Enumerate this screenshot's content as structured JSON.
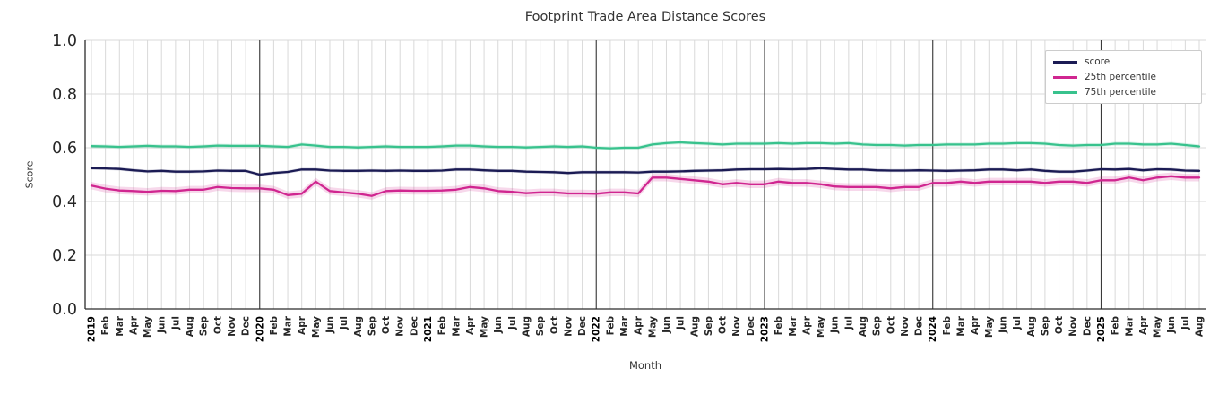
{
  "chart_data": {
    "type": "line",
    "title": "Footprint Trade Area Distance Scores",
    "xlabel": "Month",
    "ylabel": "Score",
    "ylim": [
      0.0,
      1.0
    ],
    "yticks": [
      0.0,
      0.2,
      0.4,
      0.6,
      0.8,
      1.0
    ],
    "grid": true,
    "legend_position": "upper right",
    "colors": {
      "grid": "#d9d9d9",
      "year_line": "#3a3a3a",
      "spine": "#2b2b2b",
      "tick": "#262626",
      "year_tick": "#000000"
    },
    "x_labels": [
      "2019",
      "Feb",
      "Mar",
      "Apr",
      "May",
      "Jun",
      "Jul",
      "Aug",
      "Sep",
      "Oct",
      "Nov",
      "Dec",
      "2020",
      "Feb",
      "Mar",
      "Apr",
      "May",
      "Jun",
      "Jul",
      "Aug",
      "Sep",
      "Oct",
      "Nov",
      "Dec",
      "2021",
      "Feb",
      "Mar",
      "Apr",
      "May",
      "Jun",
      "Jul",
      "Aug",
      "Sep",
      "Oct",
      "Nov",
      "Dec",
      "2022",
      "Feb",
      "Mar",
      "Apr",
      "May",
      "Jun",
      "Jul",
      "Aug",
      "Sep",
      "Oct",
      "Nov",
      "Dec",
      "2023",
      "Feb",
      "Mar",
      "Apr",
      "May",
      "Jun",
      "Jul",
      "Aug",
      "Sep",
      "Oct",
      "Nov",
      "Dec",
      "2024",
      "Feb",
      "Mar",
      "Apr",
      "May",
      "Jun",
      "Jul",
      "Aug",
      "Sep",
      "Oct",
      "Nov",
      "Dec",
      "2025",
      "Feb",
      "Mar",
      "Apr",
      "May",
      "Jun",
      "Jul",
      "Aug"
    ],
    "year_tick_indices": [
      0,
      12,
      24,
      36,
      48,
      60,
      72
    ],
    "series": [
      {
        "name": "score",
        "color": "#1b1b54",
        "band": 0.006,
        "values": [
          0.524,
          0.523,
          0.521,
          0.516,
          0.512,
          0.514,
          0.511,
          0.511,
          0.512,
          0.515,
          0.514,
          0.514,
          0.5,
          0.506,
          0.51,
          0.519,
          0.519,
          0.515,
          0.514,
          0.514,
          0.515,
          0.514,
          0.515,
          0.514,
          0.514,
          0.515,
          0.519,
          0.519,
          0.516,
          0.514,
          0.514,
          0.511,
          0.51,
          0.509,
          0.506,
          0.509,
          0.509,
          0.509,
          0.509,
          0.508,
          0.511,
          0.511,
          0.512,
          0.514,
          0.515,
          0.516,
          0.519,
          0.52,
          0.52,
          0.521,
          0.52,
          0.521,
          0.524,
          0.521,
          0.519,
          0.519,
          0.516,
          0.515,
          0.515,
          0.516,
          0.515,
          0.514,
          0.515,
          0.516,
          0.519,
          0.519,
          0.516,
          0.519,
          0.514,
          0.511,
          0.511,
          0.515,
          0.52,
          0.519,
          0.521,
          0.516,
          0.52,
          0.519,
          0.515,
          0.514
        ]
      },
      {
        "name": "25th percentile",
        "color": "#d02690",
        "band": 0.014,
        "values": [
          0.459,
          0.448,
          0.441,
          0.439,
          0.436,
          0.44,
          0.439,
          0.444,
          0.444,
          0.454,
          0.45,
          0.449,
          0.449,
          0.444,
          0.424,
          0.429,
          0.474,
          0.439,
          0.434,
          0.429,
          0.421,
          0.439,
          0.441,
          0.44,
          0.44,
          0.441,
          0.444,
          0.454,
          0.449,
          0.439,
          0.436,
          0.431,
          0.434,
          0.434,
          0.43,
          0.43,
          0.429,
          0.434,
          0.434,
          0.43,
          0.489,
          0.489,
          0.484,
          0.479,
          0.474,
          0.464,
          0.469,
          0.464,
          0.464,
          0.474,
          0.469,
          0.469,
          0.464,
          0.456,
          0.454,
          0.454,
          0.454,
          0.449,
          0.454,
          0.454,
          0.469,
          0.469,
          0.474,
          0.469,
          0.474,
          0.474,
          0.474,
          0.474,
          0.469,
          0.474,
          0.474,
          0.469,
          0.479,
          0.479,
          0.489,
          0.479,
          0.489,
          0.494,
          0.489,
          0.489
        ]
      },
      {
        "name": "75th percentile",
        "color": "#38c28d",
        "band": 0.007,
        "values": [
          0.606,
          0.605,
          0.603,
          0.605,
          0.607,
          0.605,
          0.605,
          0.603,
          0.605,
          0.608,
          0.607,
          0.607,
          0.607,
          0.605,
          0.603,
          0.612,
          0.608,
          0.603,
          0.603,
          0.601,
          0.603,
          0.605,
          0.603,
          0.603,
          0.603,
          0.605,
          0.608,
          0.608,
          0.605,
          0.603,
          0.603,
          0.601,
          0.603,
          0.605,
          0.603,
          0.605,
          0.6,
          0.598,
          0.6,
          0.6,
          0.612,
          0.617,
          0.62,
          0.617,
          0.615,
          0.612,
          0.615,
          0.615,
          0.615,
          0.617,
          0.615,
          0.617,
          0.617,
          0.615,
          0.617,
          0.612,
          0.61,
          0.61,
          0.608,
          0.61,
          0.61,
          0.612,
          0.612,
          0.612,
          0.615,
          0.615,
          0.617,
          0.617,
          0.615,
          0.61,
          0.608,
          0.61,
          0.61,
          0.615,
          0.615,
          0.612,
          0.612,
          0.615,
          0.61,
          0.605
        ]
      }
    ]
  }
}
